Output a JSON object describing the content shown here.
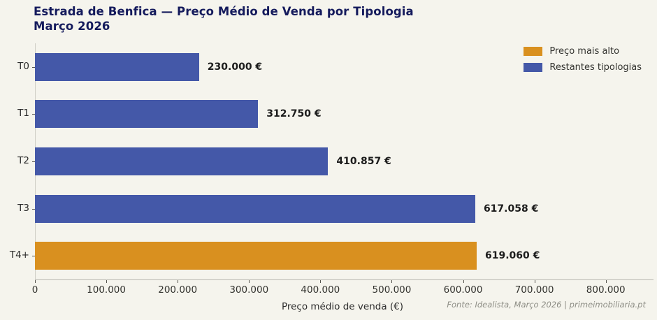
{
  "title": {
    "line1": "Estrada de Benfica — Preço Médio de Venda por Tipologia",
    "line2": "Março 2026"
  },
  "chart_data": {
    "type": "bar",
    "orientation": "horizontal",
    "title": "Estrada de Benfica — Preço Médio de Venda por Tipologia Março 2026",
    "categories": [
      "T0",
      "T1",
      "T2",
      "T3",
      "T4+"
    ],
    "values": [
      230000,
      312750,
      410857,
      617058,
      619060
    ],
    "value_labels": [
      "230.000 €",
      "312.750 €",
      "410.857 €",
      "617.058 €",
      "619.060 €"
    ],
    "highlight_index": 4,
    "xlabel": "Preço médio de venda (€)",
    "ylabel": "",
    "xlim": [
      0,
      862000
    ],
    "xticks": [
      0,
      100000,
      200000,
      300000,
      400000,
      500000,
      600000,
      700000,
      800000
    ],
    "xtick_labels": [
      "0",
      "100.000",
      "200.000",
      "300.000",
      "400.000",
      "500.000",
      "600.000",
      "700.000",
      "800.000"
    ],
    "grid": false,
    "legend_position": "top-right",
    "legend": [
      {
        "label": "Preço mais alto",
        "color": "#d9901f"
      },
      {
        "label": "Restantes tipologias",
        "color": "#4458a8"
      }
    ],
    "colors": {
      "bar": "#4458a8",
      "highlight": "#d9901f",
      "background": "#f5f4ed",
      "title": "#141a5c"
    }
  },
  "footer": {
    "source": "Fonte: Idealista, Março 2026 | primeimobiliaria.pt"
  }
}
